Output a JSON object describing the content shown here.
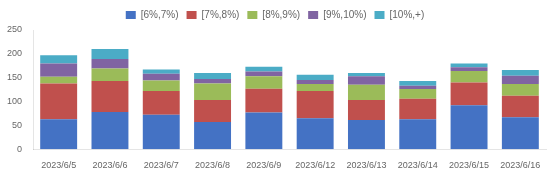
{
  "chart_data": {
    "type": "bar",
    "stacked": true,
    "categories": [
      "2023/6/5",
      "2023/6/6",
      "2023/6/7",
      "2023/6/8",
      "2023/6/9",
      "2023/6/12",
      "2023/6/13",
      "2023/6/14",
      "2023/6/15",
      "2023/6/16"
    ],
    "series": [
      {
        "name": "[6%,7%)",
        "color": "#4472C4",
        "values": [
          63,
          78,
          72,
          57,
          77,
          65,
          61,
          63,
          92,
          67
        ]
      },
      {
        "name": "[7%,8%)",
        "color": "#C0504D",
        "values": [
          75,
          65,
          50,
          46,
          50,
          57,
          42,
          43,
          48,
          45
        ]
      },
      {
        "name": "[8%,9%)",
        "color": "#9BBB59",
        "values": [
          14,
          26,
          22,
          35,
          26,
          15,
          32,
          20,
          24,
          25
        ]
      },
      {
        "name": "[9%,10%)",
        "color": "#8064A2",
        "values": [
          28,
          20,
          14,
          9,
          10,
          8,
          18,
          7,
          8,
          17
        ]
      },
      {
        "name": "[10%,+)",
        "color": "#4BACC6",
        "values": [
          17,
          21,
          9,
          13,
          10,
          11,
          7,
          10,
          8,
          12
        ]
      }
    ],
    "ylim": [
      0,
      250
    ],
    "yticks": [
      0,
      50,
      100,
      150,
      200,
      250
    ],
    "grid": false,
    "legend": "top"
  }
}
